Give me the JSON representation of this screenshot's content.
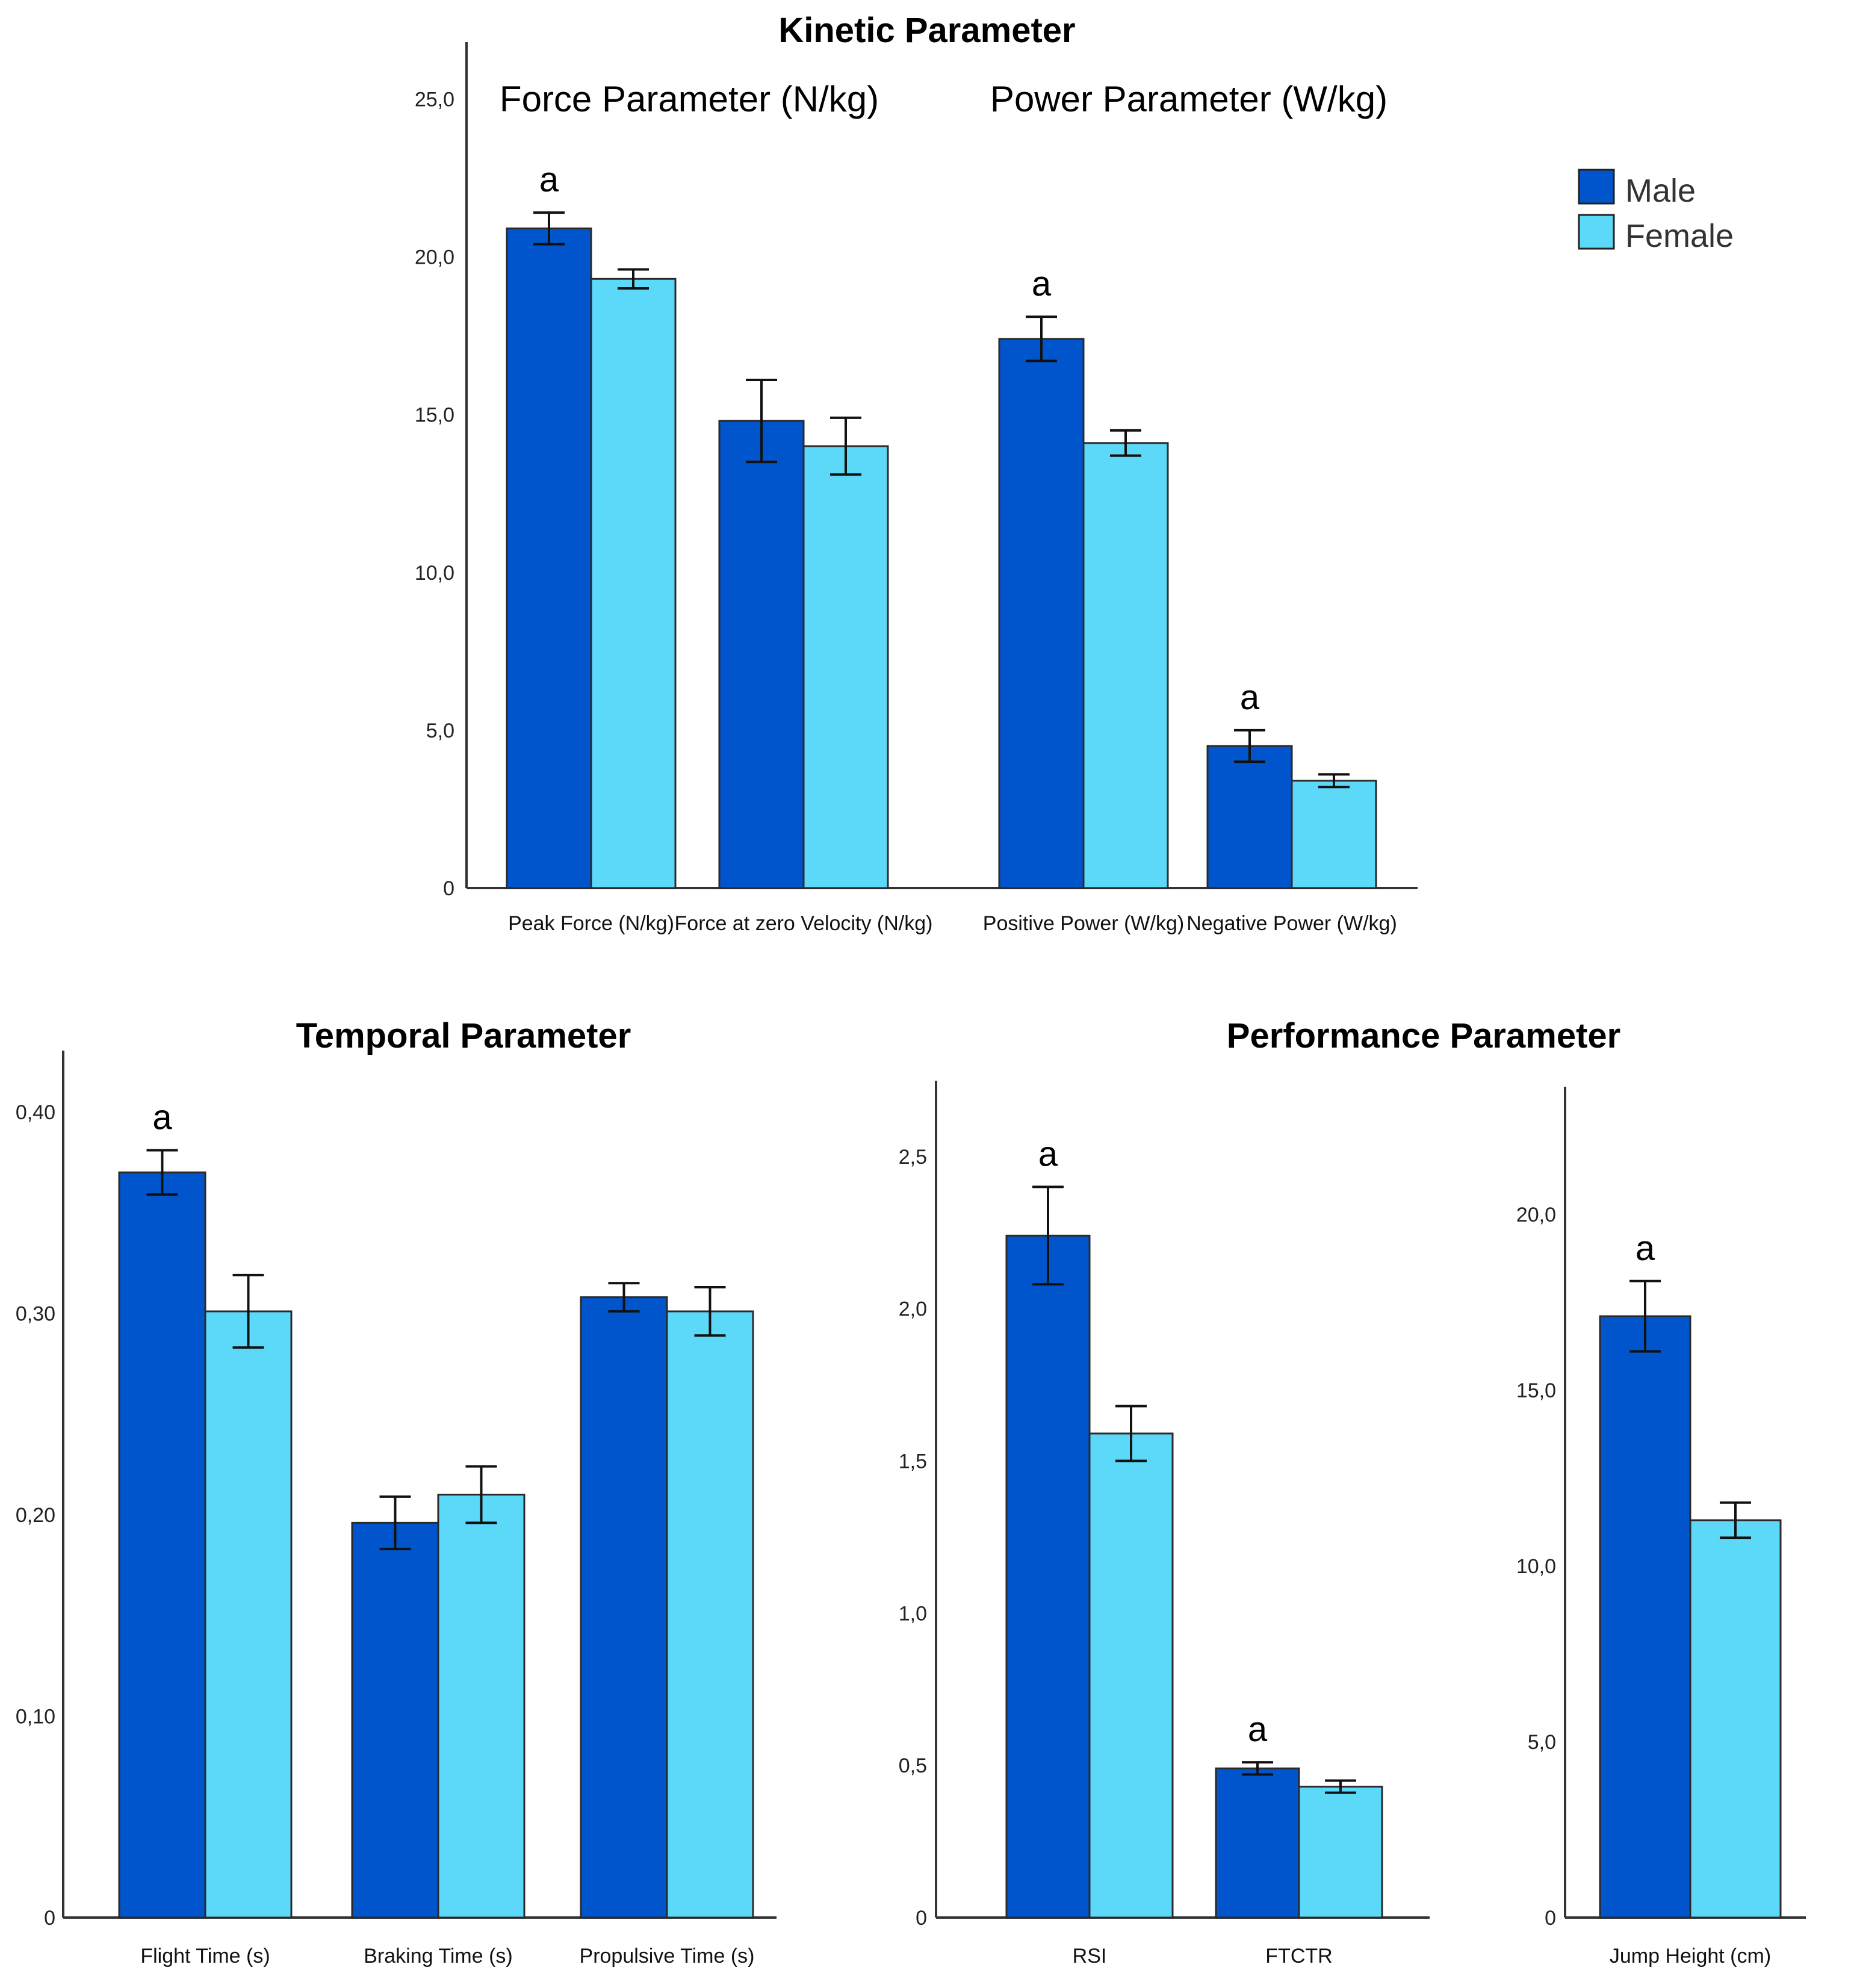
{
  "legend": {
    "items": [
      {
        "label": "Male",
        "color": "#0055cc"
      },
      {
        "label": "Female",
        "color": "#5cd8f8"
      }
    ]
  },
  "chart_data": [
    {
      "id": "kinetic",
      "type": "bar",
      "title": "Kinetic Parameter",
      "group_labels": [
        "Force Parameter (N/kg)",
        "Power Parameter (W/kg)"
      ],
      "categories": [
        "Peak Force (N/kg)",
        "Force at zero Velocity (N/kg)",
        "Positive Power (W/kg)",
        "Negative Power (W/kg)"
      ],
      "series": [
        {
          "name": "Male",
          "values": [
            20.9,
            14.8,
            17.4,
            4.5
          ],
          "error": [
            0.5,
            1.3,
            0.7,
            0.5
          ]
        },
        {
          "name": "Female",
          "values": [
            19.3,
            14.0,
            14.1,
            3.4
          ],
          "error": [
            0.3,
            0.9,
            0.4,
            0.2
          ]
        }
      ],
      "significance": [
        "a",
        "",
        "a",
        "a"
      ],
      "yticks": [
        "0",
        "5,0",
        "10,0",
        "15,0",
        "20,0",
        "25,0"
      ],
      "ylim": [
        0,
        26
      ]
    },
    {
      "id": "temporal",
      "type": "bar",
      "title": "Temporal Parameter",
      "categories": [
        "Flight Time (s)",
        "Braking Time (s)",
        "Propulsive Time (s)"
      ],
      "series": [
        {
          "name": "Male",
          "values": [
            0.37,
            0.196,
            0.308
          ],
          "error": [
            0.011,
            0.013,
            0.007
          ]
        },
        {
          "name": "Female",
          "values": [
            0.301,
            0.21,
            0.301
          ],
          "error": [
            0.018,
            0.014,
            0.012
          ]
        }
      ],
      "significance": [
        "a",
        "",
        ""
      ],
      "yticks": [
        "0",
        "0,10",
        "0,20",
        "0,30",
        "0,40"
      ],
      "ylim": [
        0,
        0.42
      ]
    },
    {
      "id": "performance-rsi",
      "type": "bar",
      "title": "Performance Parameter",
      "categories": [
        "RSI",
        "FTCTR"
      ],
      "series": [
        {
          "name": "Male",
          "values": [
            2.24,
            0.49
          ],
          "error": [
            0.16,
            0.02
          ]
        },
        {
          "name": "Female",
          "values": [
            1.59,
            0.43
          ],
          "error": [
            0.09,
            0.02
          ]
        }
      ],
      "significance": [
        "a",
        "a"
      ],
      "yticks": [
        "0",
        "0,5",
        "1,0",
        "1,5",
        "2,0",
        "2,5"
      ],
      "ylim": [
        0,
        2.65
      ]
    },
    {
      "id": "performance-jump",
      "type": "bar",
      "title": "",
      "categories": [
        "Jump Height (cm)"
      ],
      "series": [
        {
          "name": "Male",
          "values": [
            17.1
          ],
          "error": [
            1.0
          ]
        },
        {
          "name": "Female",
          "values": [
            11.3
          ],
          "error": [
            0.5
          ]
        }
      ],
      "significance": [
        "a"
      ],
      "yticks": [
        "0",
        "5,0",
        "10,0",
        "15,0",
        "20,0"
      ],
      "ylim": [
        0,
        22
      ]
    }
  ]
}
